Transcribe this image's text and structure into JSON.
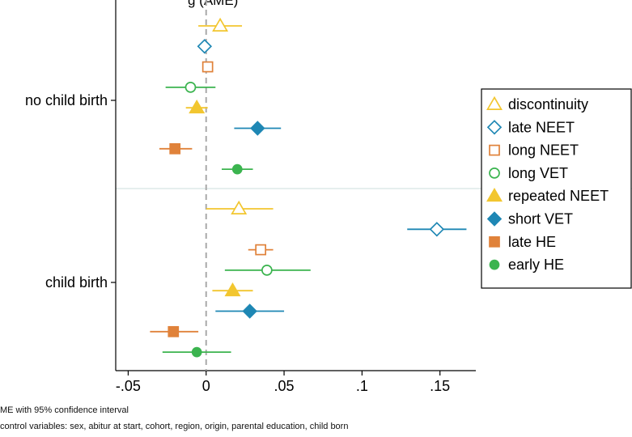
{
  "notes": [
    "ME with 95% confidence interval",
    "control variables: sex, abitur at start, cohort, region, origin, parental education, child born"
  ],
  "chart_data": {
    "type": "scatter",
    "orientation": "horizontal",
    "title_partial": "g (AME)",
    "groups": [
      "no child birth",
      "child birth"
    ],
    "x_ticks": [
      -0.05,
      0,
      0.05,
      0.1,
      0.15
    ],
    "x_tick_labels": [
      "-.05",
      "0",
      ".05",
      ".1",
      ".15"
    ],
    "xlim": [
      -0.058,
      0.173
    ],
    "reference_line_x": 0,
    "legend_position": "right",
    "series": [
      {
        "name": "discontinuity",
        "color": "#f2c62f",
        "marker": "triangle-open",
        "values": {
          "no child birth": [
            0.009,
            -0.005,
            0.023
          ],
          "child birth": [
            0.021,
            0.0,
            0.043
          ]
        }
      },
      {
        "name": "late NEET",
        "color": "#1e87b4",
        "marker": "diamond-open",
        "values": {
          "no child birth": [
            -0.001,
            -0.004,
            0.002
          ],
          "child birth": [
            0.148,
            0.129,
            0.167
          ]
        }
      },
      {
        "name": "long NEET",
        "color": "#e0823a",
        "marker": "square-open",
        "values": {
          "no child birth": [
            0.001,
            -0.002,
            0.003
          ],
          "child birth": [
            0.035,
            0.027,
            0.043
          ]
        }
      },
      {
        "name": "long VET",
        "color": "#3bb44f",
        "marker": "circle-open",
        "values": {
          "no child birth": [
            -0.01,
            -0.026,
            0.006
          ],
          "child birth": [
            0.039,
            0.012,
            0.067
          ]
        }
      },
      {
        "name": "repeated NEET",
        "color": "#f2c62f",
        "marker": "triangle-filled",
        "values": {
          "no child birth": [
            -0.006,
            -0.013,
            0.001
          ],
          "child birth": [
            0.017,
            0.004,
            0.03
          ]
        }
      },
      {
        "name": "short VET",
        "color": "#1e87b4",
        "marker": "diamond-filled",
        "values": {
          "no child birth": [
            0.033,
            0.018,
            0.048
          ],
          "child birth": [
            0.028,
            0.006,
            0.05
          ]
        }
      },
      {
        "name": "late HE",
        "color": "#e0823a",
        "marker": "square-filled",
        "values": {
          "no child birth": [
            -0.02,
            -0.03,
            -0.009
          ],
          "child birth": [
            -0.021,
            -0.036,
            -0.005
          ]
        }
      },
      {
        "name": "early HE",
        "color": "#3bb44f",
        "marker": "circle-filled",
        "values": {
          "no child birth": [
            0.02,
            0.01,
            0.03
          ],
          "child birth": [
            -0.006,
            -0.028,
            0.016
          ]
        }
      }
    ]
  }
}
